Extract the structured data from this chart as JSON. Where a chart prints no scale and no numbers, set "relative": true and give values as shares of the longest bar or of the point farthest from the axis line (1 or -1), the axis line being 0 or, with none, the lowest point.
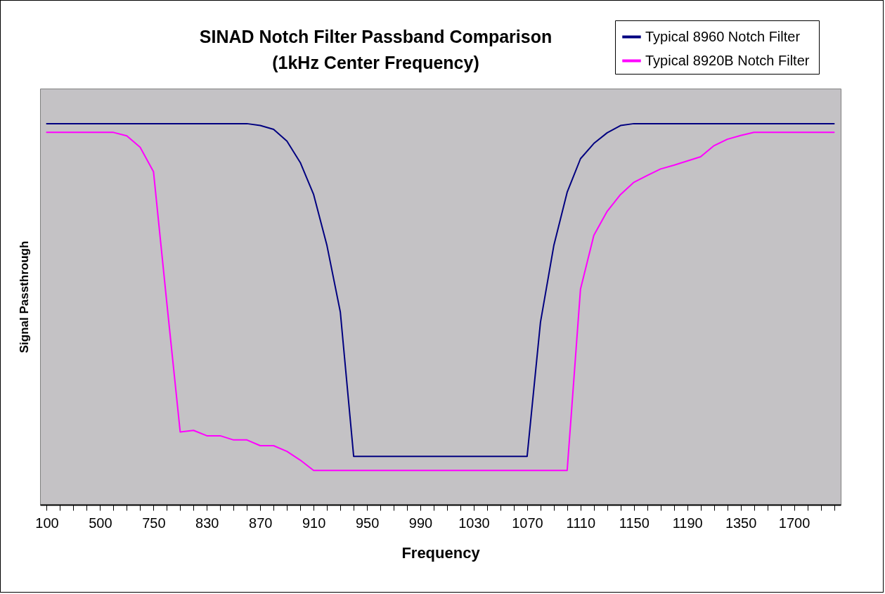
{
  "chart_data": {
    "type": "line",
    "title": "SINAD Notch Filter Passband Comparison",
    "subtitle": "(1kHz Center Frequency)",
    "xlabel": "Frequency",
    "ylabel": "Signal Passthrough",
    "relative": true,
    "legend": "top right",
    "categories": [
      "100",
      null,
      null,
      null,
      "500",
      null,
      null,
      null,
      "750",
      null,
      null,
      null,
      "830",
      null,
      null,
      null,
      "870",
      null,
      null,
      null,
      "910",
      null,
      null,
      null,
      "950",
      null,
      null,
      null,
      "990",
      null,
      null,
      null,
      "1030",
      null,
      null,
      null,
      "1070",
      null,
      null,
      null,
      "1110",
      null,
      null,
      null,
      "1150",
      null,
      null,
      null,
      "1190",
      null,
      null,
      null,
      "1350",
      null,
      null,
      null,
      "1700",
      null,
      null,
      null
    ],
    "series": [
      {
        "name": "Typical 8960  Notch Filter",
        "color": "#000080",
        "values": [
          1,
          1,
          1,
          1,
          1,
          1,
          1,
          1,
          1,
          1,
          1,
          1,
          1,
          1,
          1,
          1,
          0.995,
          0.985,
          0.954,
          0.898,
          0.814,
          0.68,
          0.506,
          0.127,
          0.127,
          0.127,
          0.127,
          0.127,
          0.127,
          0.127,
          0.127,
          0.127,
          0.127,
          0.127,
          0.127,
          0.127,
          0.127,
          0.479,
          0.68,
          0.82,
          0.908,
          0.948,
          0.976,
          0.995,
          1,
          1,
          1,
          1,
          1,
          1,
          1,
          1,
          1,
          1,
          1,
          1,
          1,
          1,
          1,
          1
        ]
      },
      {
        "name": "Typical 8920B  Notch Filter",
        "color": "#ff00ff",
        "values": [
          0.977,
          0.977,
          0.977,
          0.977,
          0.977,
          0.977,
          0.968,
          0.938,
          0.874,
          0.529,
          0.191,
          0.195,
          0.181,
          0.181,
          0.17,
          0.17,
          0.155,
          0.155,
          0.14,
          0.117,
          0.09,
          0.09,
          0.09,
          0.09,
          0.09,
          0.09,
          0.09,
          0.09,
          0.09,
          0.09,
          0.09,
          0.09,
          0.09,
          0.09,
          0.09,
          0.09,
          0.09,
          0.09,
          0.09,
          0.09,
          0.566,
          0.707,
          0.77,
          0.814,
          0.846,
          0.864,
          0.881,
          0.891,
          0.902,
          0.913,
          0.942,
          0.959,
          0.969,
          0.977,
          0.977,
          0.977,
          0.977,
          0.977,
          0.977,
          0.977
        ]
      }
    ]
  }
}
